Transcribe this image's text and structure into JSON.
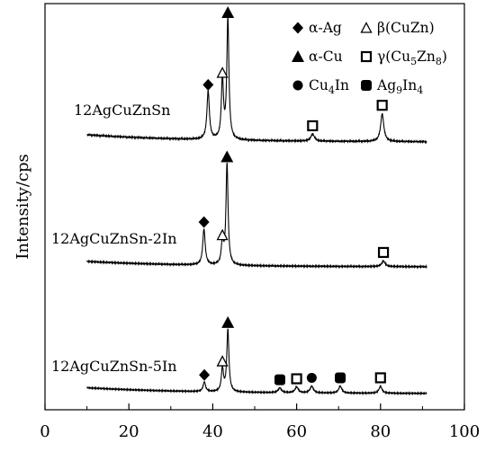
{
  "chart_data": {
    "type": "line",
    "title": "",
    "xlabel": "",
    "ylabel": "Intensity/cps",
    "xlim": [
      0,
      100
    ],
    "x_ticks": [
      "0",
      "20",
      "40",
      "60",
      "80",
      "100"
    ],
    "grid": false,
    "legend_position": "top-right",
    "legend": [
      {
        "label": "α-Ag",
        "marker": "diamond"
      },
      {
        "label": "β(CuZn)",
        "marker": "open-triangle"
      },
      {
        "label": "α-Cu",
        "marker": "triangle"
      },
      {
        "label": "γ(Cu5Zn8)",
        "marker": "open-square"
      },
      {
        "label": "Cu4In",
        "marker": "circle"
      },
      {
        "label": "Ag9In4",
        "marker": "filled-rounded-square"
      }
    ],
    "series": [
      {
        "name": "12AgCuZnSn",
        "x_range": [
          10,
          91
        ],
        "baseline": 0.06,
        "peaks": [
          {
            "x": 38.9,
            "height": 0.4,
            "width": 0.35
          },
          {
            "x": 42.3,
            "height": 0.5,
            "width": 0.3
          },
          {
            "x": 43.6,
            "height": 1.0,
            "width": 0.3
          },
          {
            "x": 63.8,
            "height": 0.06,
            "width": 0.5
          },
          {
            "x": 80.4,
            "height": 0.23,
            "width": 0.45
          }
        ],
        "markers": [
          {
            "x": 38.9,
            "phase": "α-Ag"
          },
          {
            "x": 42.3,
            "phase": "β(CuZn)"
          },
          {
            "x": 43.6,
            "phase": "α-Cu"
          },
          {
            "x": 63.8,
            "phase": "γ(Cu5Zn8)"
          },
          {
            "x": 80.4,
            "phase": "γ(Cu5Zn8)"
          }
        ]
      },
      {
        "name": "12AgCuZnSn-2In",
        "x_range": [
          10,
          91
        ],
        "baseline": 0.05,
        "peaks": [
          {
            "x": 37.9,
            "height": 0.33,
            "width": 0.35
          },
          {
            "x": 42.3,
            "height": 0.21,
            "width": 0.3
          },
          {
            "x": 43.4,
            "height": 0.93,
            "width": 0.3
          },
          {
            "x": 80.7,
            "height": 0.05,
            "width": 0.5
          }
        ],
        "markers": [
          {
            "x": 37.9,
            "phase": "α-Ag"
          },
          {
            "x": 42.3,
            "phase": "β(CuZn)"
          },
          {
            "x": 43.4,
            "phase": "α-Cu"
          },
          {
            "x": 80.7,
            "phase": "γ(Cu5Zn8)"
          }
        ]
      },
      {
        "name": "12AgCuZnSn-5In",
        "x_range": [
          10,
          91
        ],
        "baseline": 0.06,
        "peaks": [
          {
            "x": 38.0,
            "height": 0.1,
            "width": 0.35
          },
          {
            "x": 42.3,
            "height": 0.24,
            "width": 0.3
          },
          {
            "x": 43.6,
            "height": 0.64,
            "width": 0.3
          },
          {
            "x": 56.0,
            "height": 0.05,
            "width": 0.45
          },
          {
            "x": 60.0,
            "height": 0.06,
            "width": 0.45
          },
          {
            "x": 63.6,
            "height": 0.07,
            "width": 0.45
          },
          {
            "x": 70.4,
            "height": 0.07,
            "width": 0.45
          },
          {
            "x": 80.0,
            "height": 0.07,
            "width": 0.45
          }
        ],
        "markers": [
          {
            "x": 38.0,
            "phase": "α-Ag"
          },
          {
            "x": 42.3,
            "phase": "β(CuZn)"
          },
          {
            "x": 43.6,
            "phase": "α-Cu"
          },
          {
            "x": 56.0,
            "phase": "Ag9In4"
          },
          {
            "x": 60.0,
            "phase": "γ(Cu5Zn8)"
          },
          {
            "x": 63.6,
            "phase": "Cu4In"
          },
          {
            "x": 70.4,
            "phase": "Ag9In4"
          },
          {
            "x": 80.0,
            "phase": "γ(Cu5Zn8)"
          }
        ]
      }
    ]
  }
}
